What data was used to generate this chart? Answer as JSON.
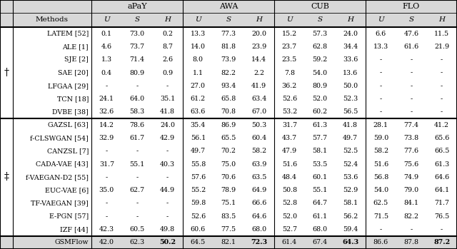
{
  "col_groups": [
    "aPaY",
    "AWA",
    "CUB",
    "FLO"
  ],
  "sub_cols": [
    "U",
    "S",
    "H"
  ],
  "methods_col": "Methods",
  "section1_label": "†",
  "section2_label": "‡",
  "rows_section1": [
    [
      "LATEM [52]",
      "0.1",
      "73.0",
      "0.2",
      "13.3",
      "77.3",
      "20.0",
      "15.2",
      "57.3",
      "24.0",
      "6.6",
      "47.6",
      "11.5"
    ],
    [
      "ALE [1]",
      "4.6",
      "73.7",
      "8.7",
      "14.0",
      "81.8",
      "23.9",
      "23.7",
      "62.8",
      "34.4",
      "13.3",
      "61.6",
      "21.9"
    ],
    [
      "SJE [2]",
      "1.3",
      "71.4",
      "2.6",
      "8.0",
      "73.9",
      "14.4",
      "23.5",
      "59.2",
      "33.6",
      "-",
      "-",
      "-"
    ],
    [
      "SAE [20]",
      "0.4",
      "80.9",
      "0.9",
      "1.1",
      "82.2",
      "2.2",
      "7.8",
      "54.0",
      "13.6",
      "-",
      "-",
      "-"
    ],
    [
      "LFGAA [29]",
      "-",
      "-",
      "-",
      "27.0",
      "93.4",
      "41.9",
      "36.2",
      "80.9",
      "50.0",
      "-",
      "-",
      "-"
    ],
    [
      "TCN [18]",
      "24.1",
      "64.0",
      "35.1",
      "61.2",
      "65.8",
      "63.4",
      "52.6",
      "52.0",
      "52.3",
      "-",
      "-",
      "-"
    ],
    [
      "DVBE [38]",
      "32.6",
      "58.3",
      "41.8",
      "63.6",
      "70.8",
      "67.0",
      "53.2",
      "60.2",
      "56.5",
      "-",
      "-",
      "-"
    ]
  ],
  "rows_section2": [
    [
      "GAZSL [63]",
      "14.2",
      "78.6",
      "24.0",
      "35.4",
      "86.9",
      "50.3",
      "31.7",
      "61.3",
      "41.8",
      "28.1",
      "77.4",
      "41.2"
    ],
    [
      "f-CLSWGAN [54]",
      "32.9",
      "61.7",
      "42.9",
      "56.1",
      "65.5",
      "60.4",
      "43.7",
      "57.7",
      "49.7",
      "59.0",
      "73.8",
      "65.6"
    ],
    [
      "CANZSL [7]",
      "-",
      "-",
      "-",
      "49.7",
      "70.2",
      "58.2",
      "47.9",
      "58.1",
      "52.5",
      "58.2",
      "77.6",
      "66.5"
    ],
    [
      "CADA-VAE [43]",
      "31.7",
      "55.1",
      "40.3",
      "55.8",
      "75.0",
      "63.9",
      "51.6",
      "53.5",
      "52.4",
      "51.6",
      "75.6",
      "61.3"
    ],
    [
      "f-VAEGAN-D2 [55]",
      "-",
      "-",
      "-",
      "57.6",
      "70.6",
      "63.5",
      "48.4",
      "60.1",
      "53.6",
      "56.8",
      "74.9",
      "64.6"
    ],
    [
      "EUC-VAE [6]",
      "35.0",
      "62.7",
      "44.9",
      "55.2",
      "78.9",
      "64.9",
      "50.8",
      "55.1",
      "52.9",
      "54.0",
      "79.0",
      "64.1"
    ],
    [
      "TF-VAEGAN [39]",
      "-",
      "-",
      "-",
      "59.8",
      "75.1",
      "66.6",
      "52.8",
      "64.7",
      "58.1",
      "62.5",
      "84.1",
      "71.7"
    ],
    [
      "E-PGN [57]",
      "-",
      "-",
      "-",
      "52.6",
      "83.5",
      "64.6",
      "52.0",
      "61.1",
      "56.2",
      "71.5",
      "82.2",
      "76.5"
    ],
    [
      "IZF [44]",
      "42.3",
      "60.5",
      "49.8",
      "60.6",
      "77.5",
      "68.0",
      "52.7",
      "68.0",
      "59.4",
      "-",
      "-",
      "-"
    ]
  ],
  "row_gsmflow": [
    "GSMFlow",
    "42.0",
    "62.3",
    "50.2",
    "64.5",
    "82.1",
    "72.3",
    "61.4",
    "67.4",
    "64.3",
    "86.6",
    "87.8",
    "87.2"
  ],
  "bold_indices_gsmflow": [
    3,
    6,
    9,
    12
  ],
  "gray_bg": "#d8d8d8",
  "white_bg": "#ffffff",
  "border_color": "#000000"
}
